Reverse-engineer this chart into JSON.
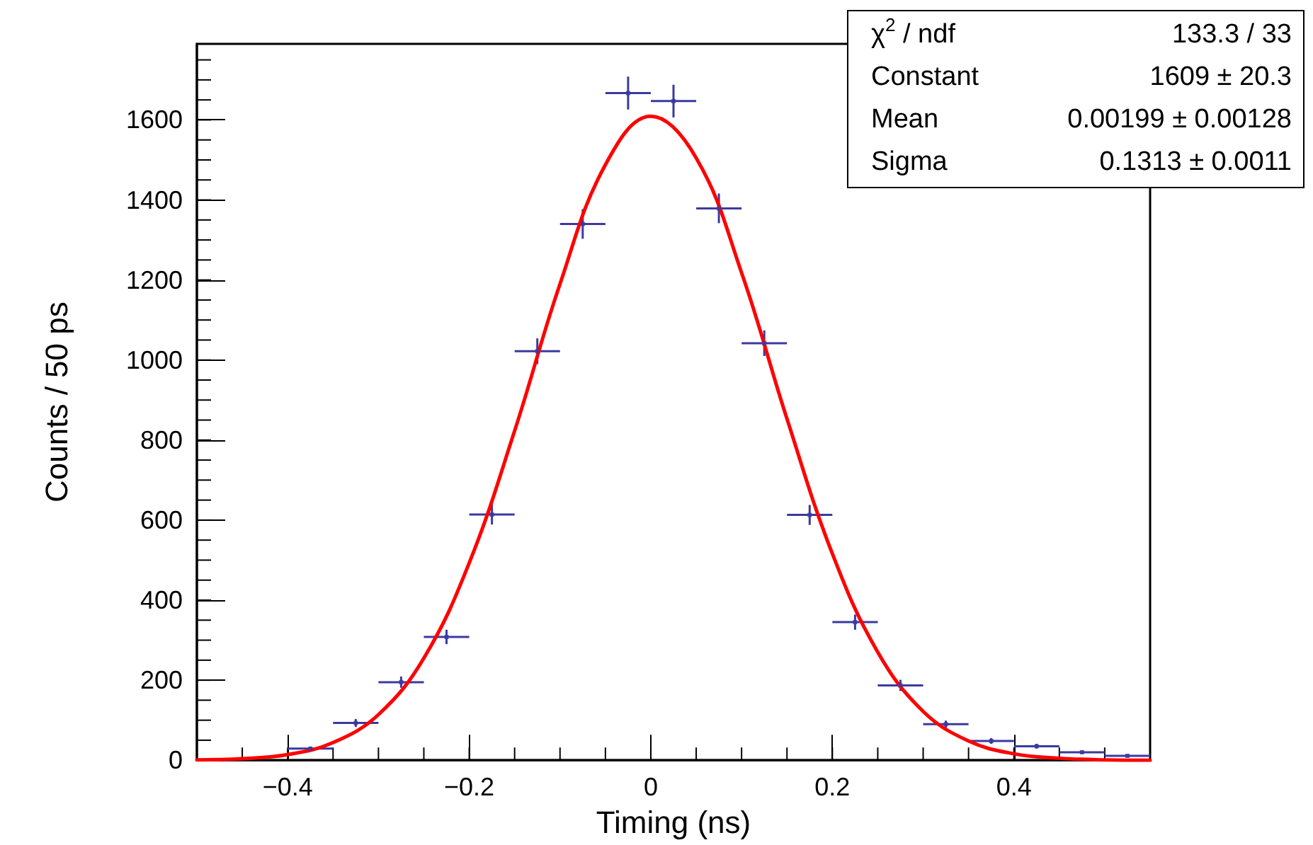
{
  "chart_data": {
    "type": "scatter",
    "xlabel": "Timing (ns)",
    "ylabel": "Counts / 50 ps",
    "xlim": [
      -0.5,
      0.55
    ],
    "xticks": [
      -0.4,
      -0.2,
      0,
      0.2,
      0.4
    ],
    "ylim": [
      0,
      1790
    ],
    "yticks": [
      0,
      200,
      400,
      600,
      800,
      1000,
      1200,
      1400,
      1600
    ],
    "grid": false,
    "series": [
      {
        "color": "#3a3aa0",
        "x": [
          -0.375,
          -0.325,
          -0.275,
          -0.225,
          -0.175,
          -0.125,
          -0.075,
          -0.025,
          0.025,
          0.075,
          0.125,
          0.175,
          0.225,
          0.275,
          0.325,
          0.375,
          0.425,
          0.475,
          0.525
        ],
        "values": [
          29,
          93,
          195,
          308,
          614,
          1022,
          1340,
          1667,
          1647,
          1379,
          1042,
          613,
          345,
          187,
          90,
          48,
          35,
          20,
          11
        ],
        "errors": [
          5,
          10,
          14,
          18,
          25,
          32,
          37,
          41,
          41,
          37,
          32,
          25,
          19,
          14,
          9,
          7,
          6,
          4,
          3
        ],
        "xerrors": [
          0.025,
          0.025,
          0.025,
          0.025,
          0.025,
          0.025,
          0.025,
          0.025,
          0.025,
          0.025,
          0.025,
          0.025,
          0.025,
          0.025,
          0.025,
          0.025,
          0.025,
          0.025,
          0.025
        ]
      },
      {
        "type": "line",
        "color": "#ff0000",
        "marker": "none",
        "line_style": "solid",
        "x": [
          -0.5,
          -0.45,
          -0.4,
          -0.35,
          -0.3,
          -0.25,
          -0.2,
          -0.15,
          -0.1,
          -0.05,
          0,
          0.05,
          0.1,
          0.15,
          0.2,
          0.25,
          0.3,
          0.35,
          0.4,
          0.45,
          0.5,
          0.55
        ],
        "values": [
          1,
          4,
          14,
          44,
          114,
          255,
          493,
          823,
          1190,
          1488,
          1609,
          1505,
          1218,
          853,
          516,
          270,
          122,
          48,
          16,
          5,
          1,
          0
        ]
      }
    ],
    "annotations": [
      "χ$^{2}$ / ndf",
      "133.3 / 33",
      "Constant",
      "1609 ± 20.3",
      "Mean",
      "0.00199 ± 0.00128",
      "Sigma",
      "0.1313 ± 0.0011"
    ]
  }
}
